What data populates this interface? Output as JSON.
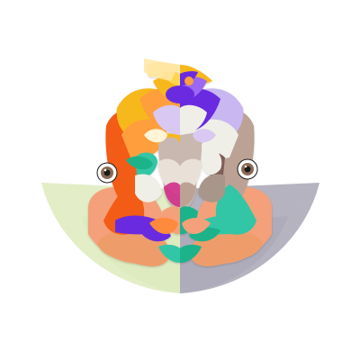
{
  "artwork": {
    "kind": "generative abstract collage face",
    "background_color": "#ffffff",
    "left_fan_color": "#e6f2c8",
    "right_fan_color": "#b6b3c1",
    "palette": [
      "#f25c12",
      "#ff9e3d",
      "#f7b81a",
      "#ffd64f",
      "#6a2be0",
      "#9b68f2",
      "#d9c8f2",
      "#32c6a6",
      "#1cb38a",
      "#f4a07a",
      "#bca295",
      "#c9b8b0",
      "#efefe8",
      "#c8b7f0",
      "#d12f8a",
      "#7f5f58",
      "#ee5230"
    ],
    "eye_iris_color": "#8a6a55",
    "eye_pupil_color": "#1a1a1a"
  }
}
